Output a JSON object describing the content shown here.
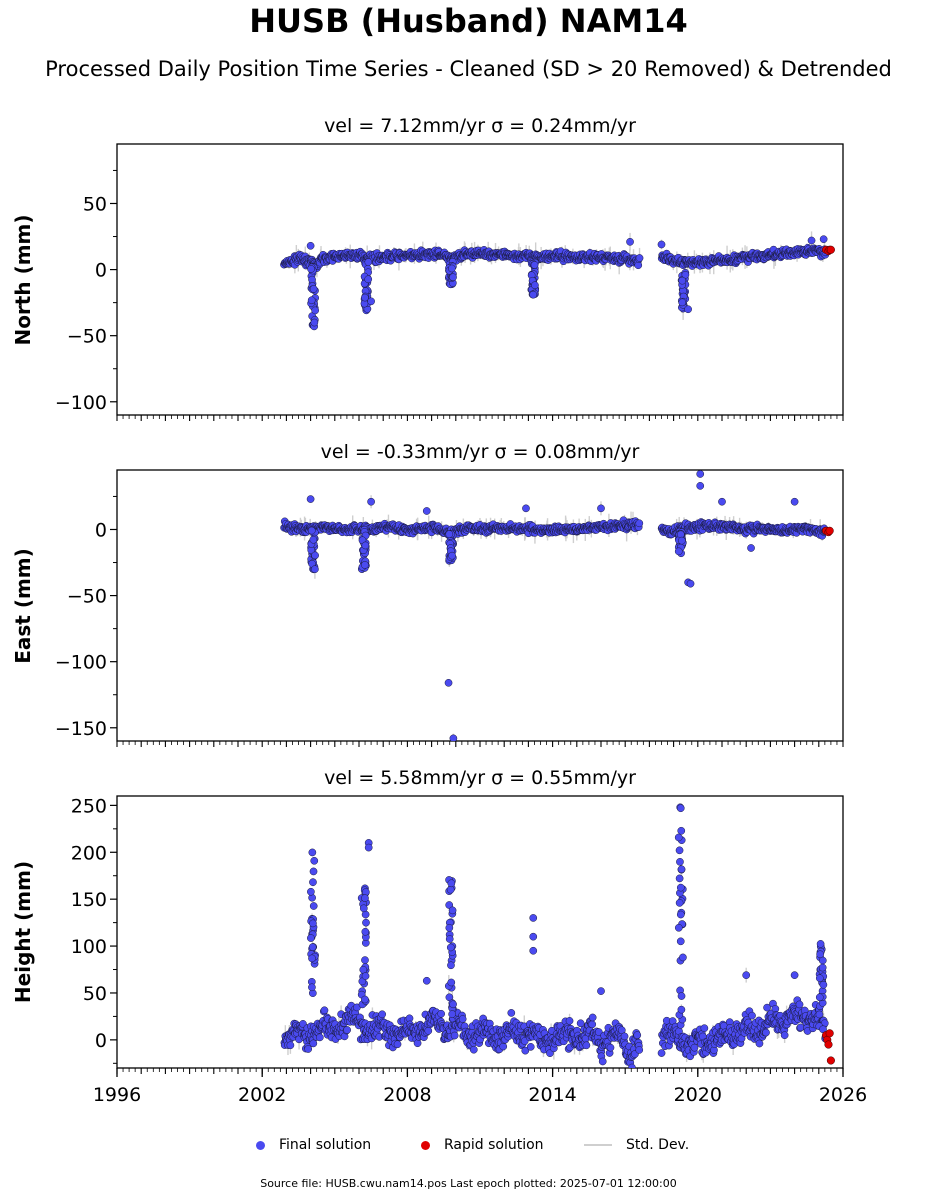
{
  "header": {
    "title": "HUSB (Husband) NAM14",
    "subtitle": "Processed Daily Position Time Series - Cleaned (SD > 20 Removed) & Detrended"
  },
  "chart_data": [
    {
      "type": "scatter",
      "title": "vel = 7.12mm/yr   σ = 0.24mm/yr",
      "ylabel": "North (mm)",
      "xlim": [
        1996,
        2026
      ],
      "ylim": [
        -110,
        95
      ],
      "yticks": [
        -100,
        -50,
        0,
        50
      ],
      "ytick_labels": [
        "−100",
        "−50",
        "0",
        "50"
      ],
      "series": [
        {
          "name": "Final solution",
          "color": "#4a4af0",
          "segments": [
            {
              "x": [
                2002.9,
                2003.5,
                2004.0,
                2004.2,
                2004.4,
                2005.0,
                2005.8,
                2006.2,
                2006.5,
                2007.5,
                2008.5,
                2009.2,
                2009.7,
                2009.9,
                2010.3,
                2011.0,
                2012.0,
                2012.8,
                2013.2,
                2013.6,
                2014.5,
                2015.5,
                2016.3,
                2017.0,
                2017.6
              ],
              "y": [
                4,
                8,
                6,
                3,
                7,
                10,
                11,
                10,
                9,
                10,
                11,
                12,
                9,
                8,
                11,
                12,
                11,
                10,
                9,
                10,
                10,
                9,
                9,
                8,
                6
              ]
            },
            {
              "x": [
                2018.5,
                2019.0,
                2019.3,
                2019.6,
                2020.0,
                2020.5,
                2021.0,
                2021.5,
                2022.0,
                2022.5,
                2023.0,
                2023.5,
                2024.0,
                2024.5,
                2025.0,
                2025.3
              ],
              "y": [
                9,
                7,
                5,
                6,
                5,
                6,
                7,
                8,
                9,
                10,
                11,
                12,
                13,
                14,
                14,
                13
              ]
            }
          ],
          "excursions": [
            {
              "x": 2004.1,
              "from": 5,
              "to": -44
            },
            {
              "x": 2006.3,
              "from": 8,
              "to": -32
            },
            {
              "x": 2009.8,
              "from": 10,
              "to": -12
            },
            {
              "x": 2013.2,
              "from": 10,
              "to": -19
            },
            {
              "x": 2019.4,
              "from": 5,
              "to": -30
            }
          ],
          "outliers": [
            [
              2004.0,
              18
            ],
            [
              2006.5,
              -24
            ],
            [
              2013.2,
              -19
            ],
            [
              2017.2,
              21
            ],
            [
              2018.5,
              19
            ],
            [
              2019.6,
              -30
            ],
            [
              2024.7,
              22
            ],
            [
              2025.2,
              23
            ]
          ]
        },
        {
          "name": "Rapid solution",
          "color": "#e00000",
          "x": [
            2025.3,
            2025.4,
            2025.45,
            2025.5
          ],
          "y": [
            15,
            14,
            15,
            15
          ]
        }
      ]
    },
    {
      "type": "scatter",
      "title": "vel = -0.33mm/yr   σ = 0.08mm/yr",
      "ylabel": "East (mm)",
      "xlim": [
        1996,
        2026
      ],
      "ylim": [
        -160,
        45
      ],
      "yticks": [
        -150,
        -100,
        -50,
        0
      ],
      "ytick_labels": [
        "−150",
        "−100",
        "−50",
        "0"
      ],
      "series": [
        {
          "name": "Final solution",
          "color": "#4a4af0",
          "segments": [
            {
              "x": [
                2002.9,
                2003.5,
                2004.0,
                2004.5,
                2005.0,
                2005.5,
                2006.0,
                2006.5,
                2007.0,
                2008.0,
                2009.0,
                2009.8,
                2010.5,
                2011.5,
                2012.5,
                2013.5,
                2014.5,
                2015.5,
                2016.5,
                2017.2,
                2017.6
              ],
              "y": [
                3,
                1,
                0,
                2,
                1,
                0,
                1,
                0,
                2,
                0,
                1,
                -2,
                1,
                0,
                1,
                0,
                0,
                1,
                2,
                4,
                2
              ]
            },
            {
              "x": [
                2018.5,
                2019.0,
                2019.5,
                2020.0,
                2020.5,
                2021.0,
                2021.5,
                2022.0,
                2022.5,
                2023.0,
                2023.5,
                2024.0,
                2024.5,
                2025.0,
                2025.3
              ],
              "y": [
                0,
                -1,
                1,
                2,
                3,
                2,
                1,
                0,
                1,
                0,
                -1,
                0,
                1,
                -2,
                -1
              ]
            }
          ],
          "excursions": [
            {
              "x": 2004.1,
              "from": 0,
              "to": -32
            },
            {
              "x": 2006.2,
              "from": 0,
              "to": -30
            },
            {
              "x": 2009.8,
              "from": 0,
              "to": -25
            },
            {
              "x": 2019.3,
              "from": 0,
              "to": -18
            }
          ],
          "outliers": [
            [
              2004.0,
              23
            ],
            [
              2006.5,
              21
            ],
            [
              2008.8,
              14
            ],
            [
              2012.9,
              16
            ],
            [
              2016.0,
              16
            ],
            [
              2019.6,
              -40
            ],
            [
              2019.7,
              -41
            ],
            [
              2020.1,
              42
            ],
            [
              2020.1,
              33
            ],
            [
              2021.0,
              21
            ],
            [
              2022.2,
              -14
            ],
            [
              2024.0,
              21
            ],
            [
              2009.7,
              -116
            ],
            [
              2009.9,
              -158
            ]
          ]
        },
        {
          "name": "Rapid solution",
          "color": "#e00000",
          "x": [
            2025.3,
            2025.4,
            2025.45
          ],
          "y": [
            -1,
            -2,
            -1
          ]
        }
      ]
    },
    {
      "type": "scatter",
      "title": "vel = 5.58mm/yr   σ = 0.55mm/yr",
      "ylabel": "Height (mm)",
      "xlim": [
        1996,
        2026
      ],
      "ylim": [
        -30,
        260
      ],
      "yticks": [
        0,
        50,
        100,
        150,
        200,
        250
      ],
      "ytick_labels": [
        "0",
        "50",
        "100",
        "150",
        "200",
        "250"
      ],
      "xticks": [
        1996,
        2002,
        2008,
        2014,
        2020,
        2026
      ],
      "xtick_labels": [
        "1996",
        "2002",
        "2008",
        "2014",
        "2020",
        "2026"
      ],
      "series": [
        {
          "name": "Final solution",
          "color": "#4a4af0",
          "segments": [
            {
              "x": [
                2002.9,
                2003.4,
                2003.9,
                2004.6,
                2005.2,
                2005.7,
                2006.4,
                2006.9,
                2007.4,
                2007.9,
                2008.5,
                2009.0,
                2009.5,
                2010.1,
                2010.6,
                2011.2,
                2011.7,
                2012.3,
                2012.8,
                2013.3,
                2013.9,
                2014.5,
                2015.0,
                2015.6,
                2016.1,
                2016.7,
                2017.2,
                2017.6
              ],
              "y": [
                -5,
                15,
                0,
                20,
                10,
                25,
                5,
                20,
                0,
                15,
                5,
                25,
                10,
                20,
                0,
                15,
                -5,
                15,
                0,
                10,
                -5,
                10,
                0,
                15,
                -10,
                10,
                -20,
                0
              ]
            },
            {
              "x": [
                2018.5,
                2019.0,
                2019.5,
                2020.0,
                2020.5,
                2021.0,
                2021.5,
                2022.0,
                2022.5,
                2023.0,
                2023.5,
                2024.0,
                2024.5,
                2025.0,
                2025.3
              ],
              "y": [
                0,
                10,
                -10,
                0,
                -5,
                10,
                0,
                20,
                5,
                25,
                15,
                30,
                20,
                25,
                10
              ]
            }
          ],
          "excursions": [
            {
              "x": 2004.1,
              "from": 20,
              "to": 200
            },
            {
              "x": 2006.2,
              "from": 20,
              "to": 165
            },
            {
              "x": 2009.8,
              "from": 20,
              "to": 175
            },
            {
              "x": 2019.3,
              "from": 10,
              "to": 258
            },
            {
              "x": 2025.1,
              "from": 10,
              "to": 105
            }
          ],
          "outliers": [
            [
              2006.4,
              210
            ],
            [
              2006.4,
              205
            ],
            [
              2013.2,
              130
            ],
            [
              2013.2,
              110
            ],
            [
              2013.2,
              95
            ],
            [
              2008.8,
              63
            ],
            [
              2016.0,
              52
            ],
            [
              2022.0,
              69
            ],
            [
              2024.0,
              69
            ]
          ]
        },
        {
          "name": "Rapid solution",
          "color": "#e00000",
          "x": [
            2025.3,
            2025.35,
            2025.4,
            2025.45,
            2025.5
          ],
          "y": [
            5,
            0,
            -5,
            7,
            -22
          ]
        }
      ]
    }
  ],
  "legend": {
    "final_label": "Final solution",
    "rapid_label": "Rapid solution",
    "std_label": "Std. Dev.",
    "final_color": "#4a4af0",
    "rapid_color": "#e00000",
    "std_color": "#cfcfcf"
  },
  "footer": {
    "source_note": "Source file: HUSB.cwu.nam14.pos  Last epoch plotted: 2025-07-01 12:00:00"
  }
}
